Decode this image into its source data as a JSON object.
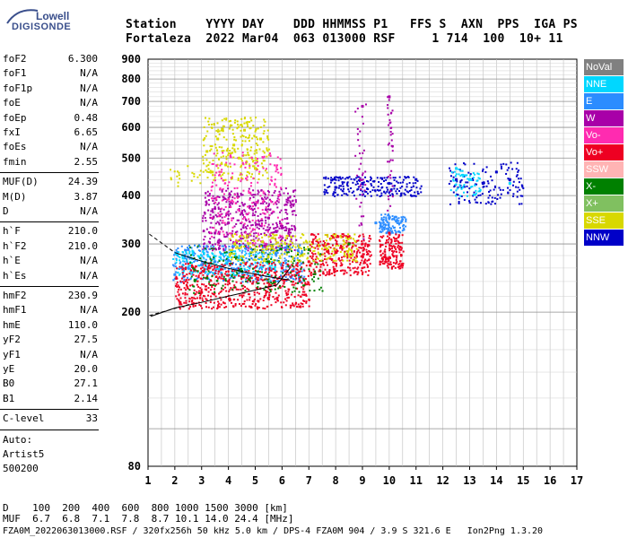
{
  "logo": {
    "line1": "Lowell",
    "line2": "DIGISONDE"
  },
  "header": {
    "labels": "Station    YYYY DAY    DDD HHMMSS P1   FFS S  AXN  PPS  IGA PS",
    "values": "Fortaleza  2022 Mar04  063 013000 RSF     1 714  100  10+ 11"
  },
  "params": {
    "group1": [
      {
        "name": "foF2",
        "value": "6.300"
      },
      {
        "name": "foF1",
        "value": "N/A"
      },
      {
        "name": "foF1p",
        "value": "N/A"
      },
      {
        "name": "foE",
        "value": "N/A"
      },
      {
        "name": "foEp",
        "value": "0.48"
      },
      {
        "name": "fxI",
        "value": "6.65"
      },
      {
        "name": "foEs",
        "value": "N/A"
      },
      {
        "name": "fmin",
        "value": "2.55"
      }
    ],
    "group2": [
      {
        "name": "MUF(D)",
        "value": "24.39"
      },
      {
        "name": "M(D)",
        "value": "3.87"
      },
      {
        "name": "D",
        "value": "N/A"
      }
    ],
    "group3": [
      {
        "name": "h`F",
        "value": "210.0"
      },
      {
        "name": "h`F2",
        "value": "210.0"
      },
      {
        "name": "h`E",
        "value": "N/A"
      },
      {
        "name": "h`Es",
        "value": "N/A"
      }
    ],
    "group4": [
      {
        "name": "hmF2",
        "value": "230.9"
      },
      {
        "name": "hmF1",
        "value": "N/A"
      },
      {
        "name": "hmE",
        "value": "110.0"
      },
      {
        "name": "yF2",
        "value": "27.5"
      },
      {
        "name": "yF1",
        "value": "N/A"
      },
      {
        "name": "yE",
        "value": "20.0"
      },
      {
        "name": "B0",
        "value": "27.1"
      },
      {
        "name": "B1",
        "value": "2.14"
      }
    ],
    "group5": [
      {
        "name": "C-level",
        "value": "33"
      }
    ]
  },
  "auto": {
    "line1": "Auto:",
    "line2": "Artist5",
    "line3": "500200"
  },
  "legend": [
    {
      "label": "NoVal",
      "color": "#808080"
    },
    {
      "label": "NNE",
      "color": "#00d7ff"
    },
    {
      "label": "E",
      "color": "#2b8cff"
    },
    {
      "label": "W",
      "color": "#a800a8"
    },
    {
      "label": "Vo-",
      "color": "#ff2bb0"
    },
    {
      "label": "Vo+",
      "color": "#ee0022"
    },
    {
      "label": "SSW",
      "color": "#ffb4b4"
    },
    {
      "label": "X-",
      "color": "#008000"
    },
    {
      "label": "X+",
      "color": "#80c060"
    },
    {
      "label": "SSE",
      "color": "#d8d800"
    },
    {
      "label": "NNW",
      "color": "#0000c8"
    }
  ],
  "chart_data": {
    "type": "scatter",
    "title": "",
    "xlabel": "",
    "ylabel": "",
    "xlim": [
      1,
      17
    ],
    "ylim": [
      80,
      900
    ],
    "y_scale": "log",
    "x_ticks": [
      "1",
      "2",
      "3",
      "4",
      "5",
      "6",
      "7",
      "8",
      "9",
      "10",
      "11",
      "12",
      "13",
      "14",
      "15",
      "16",
      "17"
    ],
    "y_ticks": [
      "80",
      "200",
      "300",
      "400",
      "500",
      "600",
      "700",
      "800",
      "900"
    ],
    "series": [
      {
        "name": "SSE",
        "color": "#d8d800",
        "points": [
          [
            3.2,
            520
          ],
          [
            3.6,
            560
          ],
          [
            4.2,
            540
          ],
          [
            4.6,
            590
          ],
          [
            3.9,
            480
          ],
          [
            4.4,
            500
          ],
          [
            5.2,
            560
          ],
          [
            5.0,
            470
          ],
          [
            3.4,
            460
          ]
        ]
      },
      {
        "name": "W",
        "color": "#a800a8",
        "points": [
          [
            3.5,
            320
          ],
          [
            4.0,
            340
          ],
          [
            4.5,
            360
          ],
          [
            5.0,
            380
          ],
          [
            5.5,
            350
          ],
          [
            6.0,
            330
          ],
          [
            9.0,
            680
          ],
          [
            10.0,
            720
          ]
        ]
      },
      {
        "name": "E",
        "color": "#2b8cff",
        "points": [
          [
            2.0,
            250
          ],
          [
            2.5,
            260
          ],
          [
            3.0,
            265
          ],
          [
            3.5,
            270
          ],
          [
            4.0,
            272
          ],
          [
            9.5,
            340
          ],
          [
            10.0,
            350
          ]
        ]
      },
      {
        "name": "Vo+",
        "color": "#ee0022",
        "points": [
          [
            2.2,
            210
          ],
          [
            3.0,
            225
          ],
          [
            4.0,
            240
          ],
          [
            5.0,
            250
          ],
          [
            6.0,
            260
          ],
          [
            7.0,
            270
          ],
          [
            8.0,
            285
          ],
          [
            9.0,
            300
          ],
          [
            10.0,
            320
          ]
        ]
      },
      {
        "name": "NNW",
        "color": "#0000c8",
        "points": [
          [
            8.0,
            420
          ],
          [
            9.0,
            430
          ],
          [
            10.0,
            430
          ],
          [
            11.0,
            440
          ],
          [
            12.5,
            440
          ],
          [
            13.5,
            430
          ],
          [
            14.0,
            460
          ],
          [
            14.5,
            440
          ]
        ]
      },
      {
        "name": "NNE",
        "color": "#00d7ff",
        "points": [
          [
            12.5,
            470
          ],
          [
            13.0,
            440
          ],
          [
            14.5,
            430
          ],
          [
            2.3,
            280
          ]
        ]
      },
      {
        "name": "X-",
        "color": "#008000",
        "points": [
          [
            3.2,
            245
          ],
          [
            4.5,
            255
          ],
          [
            5.5,
            270
          ],
          [
            7.0,
            290
          ],
          [
            8.5,
            300
          ]
        ]
      }
    ],
    "profile_line": {
      "x": [
        1.1,
        2.0,
        3.0,
        4.0,
        5.0,
        5.8,
        6.3
      ],
      "y": [
        195,
        205,
        212,
        220,
        228,
        235,
        260
      ]
    }
  },
  "bottom": {
    "d_row": "D    100  200  400  600  800 1000 1500 3000 [km]",
    "muf_row": "MUF  6.7  6.8  7.1  7.8  8.7 10.1 14.0 24.4 [MHz]",
    "footer": "FZA0M_2022063013000.RSF / 320fx256h 50 kHz 5.0 km / DPS-4 FZA0M 904 / 3.9 S 321.6 E   Ion2Png 1.3.20"
  }
}
